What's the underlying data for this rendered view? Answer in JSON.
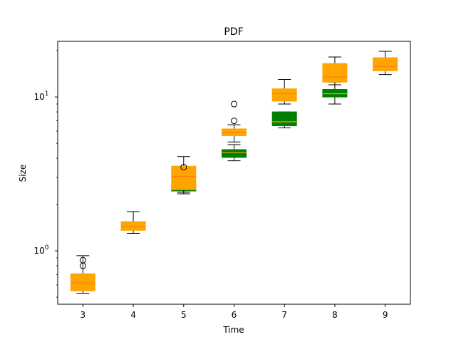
{
  "chart_data": {
    "type": "box",
    "title": "PDF",
    "xlabel": "Time",
    "ylabel": "Size",
    "yscale": "log",
    "ylim": [
      0.45,
      23
    ],
    "xlim": [
      2.5,
      9.5
    ],
    "x_ticks": [
      "3",
      "4",
      "5",
      "6",
      "7",
      "8",
      "9"
    ],
    "y_ticks": [
      {
        "value": 1,
        "base": "10",
        "exp": "0"
      },
      {
        "value": 10,
        "base": "10",
        "exp": "1"
      }
    ],
    "grid": false,
    "legend": "none",
    "series": [
      {
        "color": "#008000",
        "median_color": "#ffa500",
        "boxes": [
          {
            "x": 5,
            "whislo": 2.35,
            "q1": 2.45,
            "med": 2.55,
            "q3": 2.65,
            "whishi": 2.75,
            "fliers": []
          },
          {
            "x": 6,
            "whislo": 3.85,
            "q1": 4.05,
            "med": 4.35,
            "q3": 4.55,
            "whishi": 4.9,
            "fliers": []
          },
          {
            "x": 7,
            "whislo": 6.3,
            "q1": 6.5,
            "med": 6.9,
            "q3": 8.0,
            "whishi": 8.0,
            "fliers": []
          },
          {
            "x": 8,
            "whislo": 9.0,
            "q1": 10.0,
            "med": 10.5,
            "q3": 11.2,
            "whishi": 12.5,
            "fliers": []
          }
        ]
      },
      {
        "color": "#ffa500",
        "median_color": "#ff7f0e",
        "boxes": [
          {
            "x": 3,
            "whislo": 0.53,
            "q1": 0.55,
            "med": 0.62,
            "q3": 0.71,
            "whishi": 0.93,
            "fliers": [
              0.8,
              0.87
            ]
          },
          {
            "x": 4,
            "whislo": 1.3,
            "q1": 1.36,
            "med": 1.44,
            "q3": 1.55,
            "whishi": 1.8,
            "fliers": []
          },
          {
            "x": 5,
            "whislo": 2.4,
            "q1": 2.5,
            "med": 3.05,
            "q3": 3.55,
            "whishi": 4.1,
            "fliers": [
              3.5
            ]
          },
          {
            "x": 6,
            "whislo": 5.1,
            "q1": 5.6,
            "med": 5.9,
            "q3": 6.2,
            "whishi": 6.6,
            "fliers": [
              7.0,
              9.0
            ]
          },
          {
            "x": 7,
            "whislo": 9.0,
            "q1": 9.4,
            "med": 10.5,
            "q3": 11.3,
            "whishi": 13.0,
            "fliers": []
          },
          {
            "x": 8,
            "whislo": 12.0,
            "q1": 12.5,
            "med": 13.5,
            "q3": 16.5,
            "whishi": 18.2,
            "fliers": []
          },
          {
            "x": 9,
            "whislo": 14.0,
            "q1": 14.8,
            "med": 15.8,
            "q3": 18.0,
            "whishi": 19.8,
            "fliers": []
          }
        ]
      }
    ]
  }
}
